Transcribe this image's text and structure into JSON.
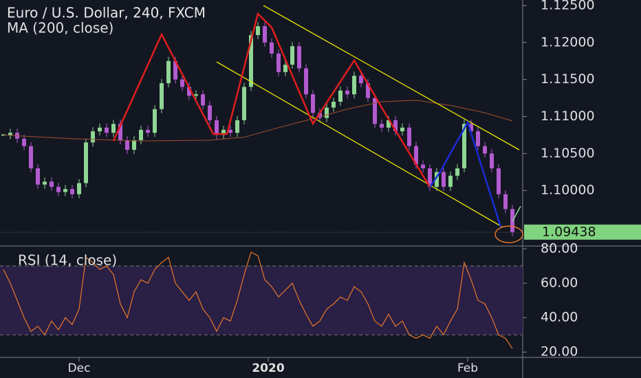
{
  "chart_data": [
    {
      "type": "candlestick",
      "title": "Euro / U.S. Dollar, 240, FXCM",
      "xlim": [
        -0.5,
        75.5
      ],
      "ylim": [
        1.0925,
        1.12574
      ],
      "yticks": [
        {
          "value": 1.1,
          "label": "1.10000"
        },
        {
          "value": 1.105,
          "label": "1.10500"
        },
        {
          "value": 1.11,
          "label": "1.11000"
        },
        {
          "value": 1.115,
          "label": "1.11500"
        },
        {
          "value": 1.12,
          "label": "1.12000"
        },
        {
          "value": 1.125,
          "label": "1.12500"
        }
      ],
      "xticks": [
        {
          "value": 11,
          "label": "Dec"
        },
        {
          "value": 38.5,
          "label": "2020"
        },
        {
          "value": 67.5,
          "label": "Feb"
        }
      ],
      "up_color": "#8fd694",
      "down_color": "#b35bd0",
      "values": [
        1.1075,
        1.1078,
        1.107,
        1.106,
        1.103,
        1.1008,
        1.1012,
        1.1005,
        1.0998,
        1.1002,
        1.0995,
        1.101,
        1.1065,
        1.108,
        1.1085,
        1.1078,
        1.109,
        1.1068,
        1.1055,
        1.1068,
        1.1082,
        1.1078,
        1.111,
        1.1145,
        1.1175,
        1.115,
        1.114,
        1.1128,
        1.113,
        1.1115,
        1.1095,
        1.1075,
        1.1082,
        1.1078,
        1.1095,
        1.114,
        1.121,
        1.1222,
        1.12,
        1.1185,
        1.116,
        1.117,
        1.1195,
        1.1165,
        1.113,
        1.1105,
        1.1098,
        1.1112,
        1.112,
        1.1135,
        1.113,
        1.1155,
        1.1145,
        1.1125,
        1.109,
        1.1085,
        1.1095,
        1.108,
        1.1085,
        1.106,
        1.1035,
        1.103,
        1.1005,
        1.1025,
        1.1005,
        1.102,
        1.103,
        1.109,
        1.108,
        1.106,
        1.105,
        1.103,
        1.0995,
        1.0975,
        1.09438
      ],
      "last_price": 1.09438,
      "last_color": "#80d37f",
      "ma": {
        "name": "MA (200, close)",
        "color": "#a0522d",
        "x": [
          0,
          10,
          20,
          30,
          35,
          40,
          45,
          50,
          55,
          60,
          65,
          70,
          74
        ],
        "values": [
          1.1075,
          1.107,
          1.1067,
          1.1068,
          1.1072,
          1.1085,
          1.1097,
          1.111,
          1.112,
          1.1122,
          1.1115,
          1.1105,
          1.1094
        ]
      }
    },
    {
      "type": "line",
      "title": "RSI (14, close)",
      "xlim": [
        -0.5,
        75.5
      ],
      "ylim": [
        16.9,
        80.8
      ],
      "yticks": [
        {
          "value": 20,
          "label": "20.00"
        },
        {
          "value": 40,
          "label": "40.00"
        },
        {
          "value": 60,
          "label": "60.00"
        },
        {
          "value": 80,
          "label": "80.00"
        }
      ],
      "band": [
        30,
        70
      ],
      "color": "#e8782a",
      "band_color": "#2a1f45",
      "values": [
        68,
        60,
        50,
        40,
        32,
        35,
        30,
        38,
        33,
        40,
        36,
        45,
        75,
        72,
        68,
        70,
        65,
        48,
        40,
        55,
        62,
        60,
        68,
        72,
        75,
        60,
        55,
        50,
        55,
        45,
        40,
        32,
        40,
        38,
        50,
        65,
        78,
        76,
        62,
        58,
        52,
        56,
        60,
        50,
        42,
        35,
        38,
        45,
        48,
        52,
        50,
        58,
        55,
        48,
        38,
        35,
        42,
        35,
        38,
        30,
        28,
        30,
        28,
        35,
        30,
        38,
        45,
        72,
        62,
        50,
        48,
        40,
        30,
        28,
        22
      ]
    }
  ]
}
